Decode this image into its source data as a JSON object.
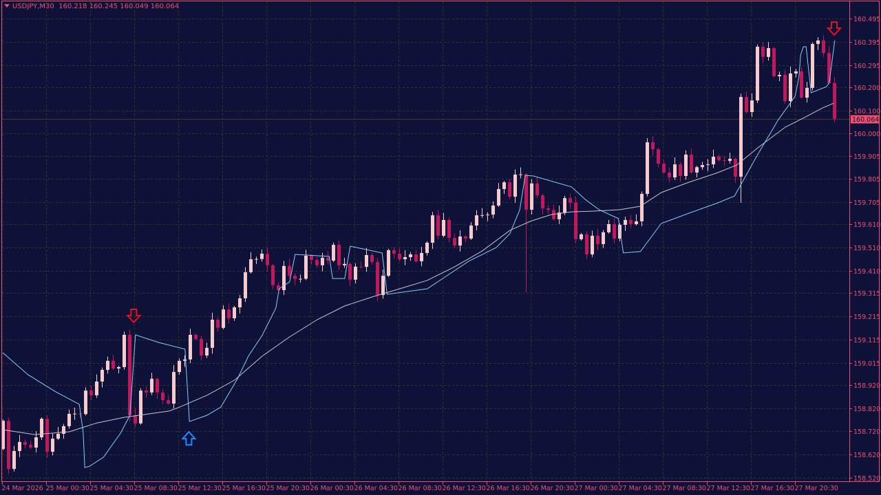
{
  "header": {
    "symbol": "USDJPY,M30",
    "open": "160.218",
    "high": "160.245",
    "low": "160.049",
    "close": "160.064"
  },
  "colors": {
    "background": "#0e1138",
    "bull": "#f8cccc",
    "bear": "#c0185a",
    "axis": "#f0506e",
    "grid": "#3b3326",
    "fast_line": "#87cefa",
    "slow_line": "#c8c8c8",
    "sell_arrow": "#e8101c",
    "buy_arrow": "#1e8cff",
    "last_price_line": "#4a3a1a"
  },
  "chart_data": {
    "type": "candlestick",
    "symbol": "USDJPY",
    "timeframe": "M30",
    "ylim": [
      158.52,
      160.495
    ],
    "grid": true,
    "first_open": 158.644,
    "closes": [
      158.765,
      158.558,
      158.635,
      158.674,
      158.662,
      158.65,
      158.694,
      158.774,
      158.632,
      158.688,
      158.709,
      158.742,
      158.795,
      158.796,
      158.794,
      158.895,
      158.875,
      158.934,
      158.984,
      159.023,
      158.99,
      158.996,
      159.135,
      158.789,
      158.754,
      158.895,
      158.887,
      158.946,
      158.887,
      158.854,
      158.839,
      158.975,
      159.023,
      159.029,
      159.135,
      159.117,
      159.046,
      159.079,
      159.2,
      159.165,
      159.244,
      159.206,
      159.253,
      159.292,
      159.404,
      159.46,
      159.461,
      159.484,
      159.434,
      159.348,
      159.327,
      159.431,
      159.389,
      159.375,
      159.376,
      159.475,
      159.457,
      159.434,
      159.466,
      159.454,
      159.522,
      159.434,
      159.44,
      159.372,
      159.428,
      159.427,
      159.478,
      159.448,
      159.306,
      159.389,
      159.499,
      159.484,
      159.46,
      159.469,
      159.481,
      159.451,
      159.487,
      159.531,
      159.649,
      159.561,
      159.629,
      159.552,
      159.519,
      159.558,
      159.549,
      159.605,
      159.649,
      159.65,
      159.652,
      159.691,
      159.762,
      159.791,
      159.729,
      159.824,
      159.825,
      159.673,
      159.786,
      159.735,
      159.679,
      159.672,
      159.632,
      159.661,
      159.723,
      159.703,
      159.546,
      159.567,
      159.481,
      159.561,
      159.525,
      159.576,
      159.611,
      159.549,
      159.608,
      159.629,
      159.611,
      159.623,
      159.741,
      159.963,
      159.933,
      159.871,
      159.833,
      159.812,
      159.868,
      159.818,
      159.91,
      159.833,
      159.856,
      159.865,
      159.868,
      159.901,
      159.886,
      159.883,
      159.892,
      159.815,
      160.158,
      160.093,
      160.143,
      160.374,
      160.33,
      160.368,
      160.247,
      160.253,
      160.14,
      160.259,
      160.268,
      160.155,
      160.197,
      160.386,
      160.401,
      160.347,
      160.218,
      160.064
    ],
    "notable_extremes": [
      {
        "index": 95,
        "high": 159.83,
        "low": 159.318
      },
      {
        "index": 134,
        "low": 159.703
      },
      {
        "index": 151,
        "high": 160.245,
        "low": 160.049
      }
    ],
    "slow_line": [
      [
        0,
        158.727
      ],
      [
        5.8,
        158.706
      ],
      [
        12.1,
        158.718
      ],
      [
        17.1,
        158.756
      ],
      [
        22.1,
        158.78
      ],
      [
        30.2,
        158.807
      ],
      [
        32.1,
        158.824
      ],
      [
        37.1,
        158.875
      ],
      [
        42.1,
        158.94
      ],
      [
        47.1,
        159.043
      ],
      [
        52.1,
        159.126
      ],
      [
        57.1,
        159.2
      ],
      [
        62.1,
        159.259
      ],
      [
        67.1,
        159.298
      ],
      [
        72.1,
        159.333
      ],
      [
        77.1,
        159.369
      ],
      [
        82.1,
        159.428
      ],
      [
        87.1,
        159.496
      ],
      [
        92.1,
        159.584
      ],
      [
        95.8,
        159.623
      ],
      [
        99.6,
        159.652
      ],
      [
        103.3,
        159.664
      ],
      [
        107.1,
        159.667
      ],
      [
        112.1,
        159.673
      ],
      [
        115.8,
        159.688
      ],
      [
        119.6,
        159.747
      ],
      [
        124.6,
        159.791
      ],
      [
        129.6,
        159.83
      ],
      [
        133.3,
        159.865
      ],
      [
        137.1,
        159.939
      ],
      [
        142.1,
        160.028
      ],
      [
        145.8,
        160.072
      ],
      [
        148.9,
        160.111
      ],
      [
        150.9,
        160.131
      ]
    ],
    "fast_line": [
      [
        0,
        159.058
      ],
      [
        4.6,
        158.963
      ],
      [
        9.6,
        158.89
      ],
      [
        13.9,
        158.836
      ],
      [
        14.6,
        158.718
      ],
      [
        14.9,
        158.564
      ],
      [
        15.8,
        158.57
      ],
      [
        18.3,
        158.609
      ],
      [
        21.4,
        158.712
      ],
      [
        23.1,
        158.789
      ],
      [
        24.1,
        159.135
      ],
      [
        28.3,
        159.102
      ],
      [
        33.1,
        159.073
      ],
      [
        33.9,
        158.762
      ],
      [
        37.1,
        158.789
      ],
      [
        39.6,
        158.824
      ],
      [
        42.7,
        158.949
      ],
      [
        44.6,
        159.043
      ],
      [
        47.1,
        159.132
      ],
      [
        49.6,
        159.25
      ],
      [
        50.2,
        159.333
      ],
      [
        52.1,
        159.363
      ],
      [
        53.1,
        159.481
      ],
      [
        59.3,
        159.472
      ],
      [
        59.9,
        159.377
      ],
      [
        62.1,
        159.377
      ],
      [
        63.1,
        159.516
      ],
      [
        68.9,
        159.487
      ],
      [
        69.8,
        159.309
      ],
      [
        77.1,
        159.333
      ],
      [
        84.6,
        159.451
      ],
      [
        89.6,
        159.51
      ],
      [
        92.1,
        159.57
      ],
      [
        93.9,
        159.673
      ],
      [
        94.9,
        159.821
      ],
      [
        96.4,
        159.818
      ],
      [
        103.3,
        159.771
      ],
      [
        105.8,
        159.717
      ],
      [
        108.3,
        159.673
      ],
      [
        111.8,
        159.635
      ],
      [
        112.7,
        159.487
      ],
      [
        115.8,
        159.493
      ],
      [
        119.6,
        159.614
      ],
      [
        124.6,
        159.658
      ],
      [
        129.6,
        159.7
      ],
      [
        132.9,
        159.732
      ],
      [
        137.1,
        159.91
      ],
      [
        140.8,
        160.058
      ],
      [
        143.9,
        160.161
      ],
      [
        144.6,
        160.244
      ],
      [
        144.9,
        160.338
      ],
      [
        145.4,
        160.374
      ],
      [
        145.9,
        160.374
      ],
      [
        146.8,
        160.176
      ],
      [
        149.6,
        160.202
      ],
      [
        150.1,
        160.22
      ],
      [
        151.1,
        160.401
      ]
    ],
    "signals": [
      {
        "type": "sell",
        "index": 23.8,
        "price": 159.212
      },
      {
        "type": "buy",
        "index": 33.8,
        "price": 158.694
      },
      {
        "type": "sell",
        "index": 151,
        "price": 160.448
      }
    ],
    "price_ticks": [
      "160.495",
      "160.395",
      "160.295",
      "160.200",
      "160.100",
      "160.000",
      "159.905",
      "159.805",
      "159.705",
      "159.610",
      "159.510",
      "159.410",
      "159.315",
      "159.215",
      "159.115",
      "159.015",
      "158.920",
      "158.820",
      "158.720",
      "158.620",
      "158.520"
    ],
    "time_ticks": [
      "24 Mar 2026",
      "25 Mar 00:30",
      "25 Mar 04:30",
      "25 Mar 08:30",
      "25 Mar 12:30",
      "25 Mar 16:30",
      "25 Mar 20:30",
      "26 Mar 00:30",
      "26 Mar 04:30",
      "26 Mar 08:30",
      "26 Mar 12:30",
      "26 Mar 16:30",
      "26 Mar 20:30",
      "27 Mar 00:30",
      "27 Mar 04:30",
      "27 Mar 08:30",
      "27 Mar 12:30",
      "27 Mar 16:30",
      "27 Mar 20:30"
    ],
    "time_tick_every_candles": 8,
    "last_price": "160.064"
  }
}
